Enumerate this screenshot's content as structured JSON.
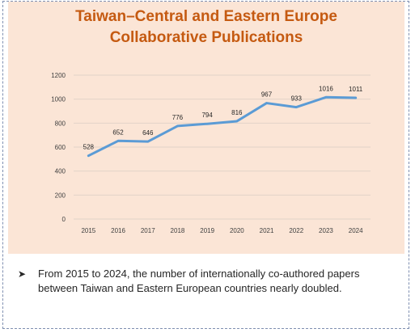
{
  "chart_data": {
    "type": "line",
    "title": [
      "Taiwan–Central and Eastern Europe",
      "Collaborative Publications"
    ],
    "x": [
      "2015",
      "2016",
      "2017",
      "2018",
      "2019",
      "2020",
      "2021",
      "2022",
      "2023",
      "2024"
    ],
    "series": [
      {
        "values": [
          528,
          652,
          646,
          776,
          794,
          816,
          967,
          933,
          1016,
          1011
        ]
      }
    ],
    "y_ticks": [
      "0",
      "200",
      "400",
      "600",
      "800",
      "1000",
      "1200"
    ],
    "ylim": [
      0,
      1200
    ],
    "grid": true,
    "legend": "none",
    "line_color": "#5b9bd5"
  },
  "note": {
    "bullet_icon": "arrowhead-bullet-icon",
    "text": "From 2015 to 2024, the number of internationally co-authored papers between Taiwan and Eastern European countries nearly doubled."
  }
}
